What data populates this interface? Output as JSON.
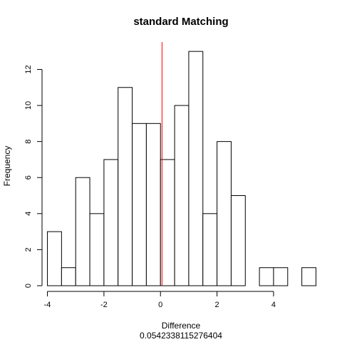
{
  "chart_data": {
    "type": "bar",
    "title": "standard Matching",
    "xlabel": "Difference",
    "subtitle": "0.0542338115276404",
    "ylabel": "Frequency",
    "bin_width": 0.5,
    "bins": [
      {
        "start": -4.0,
        "end": -3.5,
        "count": 3
      },
      {
        "start": -3.5,
        "end": -3.0,
        "count": 1
      },
      {
        "start": -3.0,
        "end": -2.5,
        "count": 6
      },
      {
        "start": -2.5,
        "end": -2.0,
        "count": 4
      },
      {
        "start": -2.0,
        "end": -1.5,
        "count": 7
      },
      {
        "start": -1.5,
        "end": -1.0,
        "count": 11
      },
      {
        "start": -1.0,
        "end": -0.5,
        "count": 9
      },
      {
        "start": -0.5,
        "end": 0.0,
        "count": 9
      },
      {
        "start": 0.0,
        "end": 0.5,
        "count": 7
      },
      {
        "start": 0.5,
        "end": 1.0,
        "count": 10
      },
      {
        "start": 1.0,
        "end": 1.5,
        "count": 13
      },
      {
        "start": 1.5,
        "end": 2.0,
        "count": 4
      },
      {
        "start": 2.0,
        "end": 2.5,
        "count": 8
      },
      {
        "start": 2.5,
        "end": 3.0,
        "count": 5
      },
      {
        "start": 3.0,
        "end": 3.5,
        "count": 0
      },
      {
        "start": 3.5,
        "end": 4.0,
        "count": 1
      },
      {
        "start": 4.0,
        "end": 4.5,
        "count": 1
      },
      {
        "start": 4.5,
        "end": 5.0,
        "count": 0
      },
      {
        "start": 5.0,
        "end": 5.5,
        "count": 1
      }
    ],
    "x_ticks": [
      -4,
      -2,
      0,
      2,
      4
    ],
    "x_tick_labels": [
      "-4",
      "-2",
      "0",
      "2",
      "4"
    ],
    "y_ticks": [
      0,
      2,
      4,
      6,
      8,
      10,
      12
    ],
    "y_tick_labels": [
      "0",
      "2",
      "4",
      "6",
      "8",
      "10",
      "12"
    ],
    "xlim": [
      -4.19,
      5.69
    ],
    "ylim": [
      0,
      13.52
    ],
    "reference_line": {
      "x": 0.0542338115276404,
      "color": "#ff0000"
    },
    "bar_fill": "#ffffff",
    "bar_stroke": "#000000",
    "grid": false,
    "legend": "none"
  }
}
